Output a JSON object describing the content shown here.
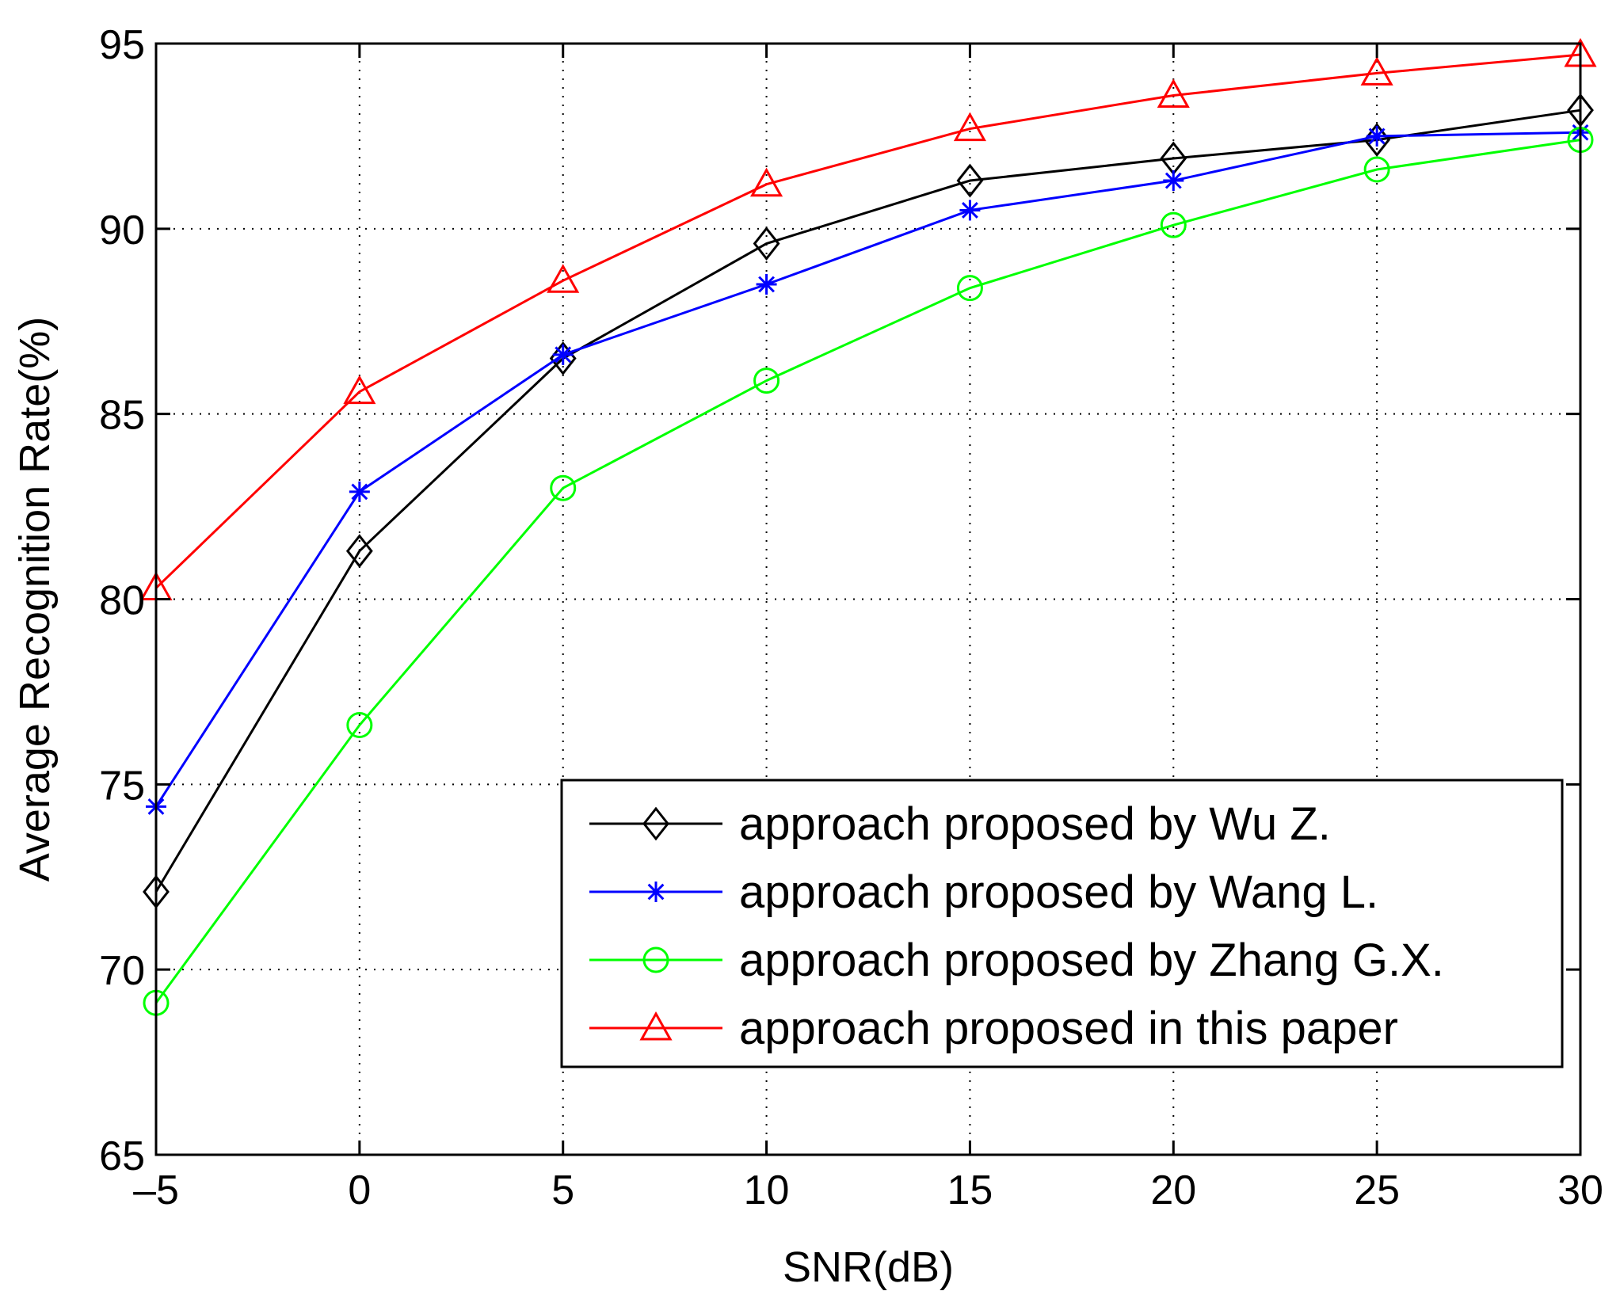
{
  "chart_data": {
    "type": "line",
    "title": "",
    "xlabel": "SNR(dB)",
    "ylabel": "Average Recognition Rate(%)",
    "xlim": [
      -5,
      30
    ],
    "ylim": [
      65,
      95
    ],
    "x": [
      -5,
      0,
      5,
      10,
      15,
      20,
      25,
      30
    ],
    "x_ticks": [
      -5,
      0,
      5,
      10,
      15,
      20,
      25,
      30
    ],
    "x_tick_labels": [
      "–5",
      "0",
      "5",
      "10",
      "15",
      "20",
      "25",
      "30"
    ],
    "y_ticks": [
      65,
      70,
      75,
      80,
      85,
      90,
      95
    ],
    "y_tick_labels": [
      "65",
      "70",
      "75",
      "80",
      "85",
      "90",
      "95"
    ],
    "grid": true,
    "legend_position": "bottom-right",
    "series": [
      {
        "name": "approach proposed by Wu Z.",
        "color": "#000000",
        "marker": "diamond",
        "values": [
          72.1,
          81.3,
          86.5,
          89.6,
          91.3,
          91.9,
          92.4,
          93.2
        ]
      },
      {
        "name": "approach proposed by Wang L.",
        "color": "#0000ff",
        "marker": "star",
        "values": [
          74.4,
          82.9,
          86.6,
          88.5,
          90.5,
          91.3,
          92.5,
          92.6
        ]
      },
      {
        "name": "approach proposed by Zhang G.X.",
        "color": "#00ff00",
        "marker": "circle",
        "values": [
          69.1,
          76.6,
          83.0,
          85.9,
          88.4,
          90.1,
          91.6,
          92.4
        ]
      },
      {
        "name": "approach proposed in this paper",
        "color": "#ff0000",
        "marker": "triangle",
        "values": [
          80.3,
          85.6,
          88.6,
          91.2,
          92.7,
          93.6,
          94.2,
          94.7
        ]
      }
    ]
  }
}
